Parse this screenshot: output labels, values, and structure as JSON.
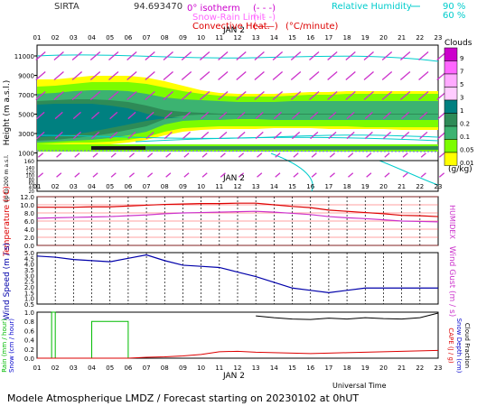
{
  "header": {
    "station": "SIRTA",
    "coords": "94.693470",
    "legend_isotherm": "0° isotherm",
    "legend_snowrain": "Snow-Rain Limit",
    "legend_conv": "Convective Heat.",
    "conv_unit": "(°C/minute)",
    "rh_label": "Relative Humidity",
    "rh_90": "90 %",
    "rh_60": "60 %"
  },
  "footer": {
    "universal_time": "Universal Time",
    "bottom_title": "Modele Atmospherique LMDZ / Forecast starting on 20230102 at 0hUT"
  },
  "chart_data": [
    {
      "type": "heatmap",
      "title": "Clouds",
      "unit": "(g/kg)",
      "hours": [
        "01",
        "02",
        "03",
        "04",
        "05",
        "06",
        "07",
        "08",
        "09",
        "10",
        "11",
        "12",
        "13",
        "14",
        "15",
        "16",
        "17",
        "18",
        "19",
        "20",
        "21",
        "22",
        "23"
      ],
      "day_label": "JAN 2",
      "ylabel": "Height (m a.s.l.)",
      "ylabel_low": "Up to 200 m a.s.l.",
      "yticks_upper": [
        11000,
        9000,
        7000,
        5000,
        3000,
        1000
      ],
      "yticks_lower": [
        140,
        120,
        100,
        80,
        60,
        40,
        20
      ],
      "yticks_lower_top": 160,
      "scale_labels": [
        "9",
        "7",
        "5",
        "3",
        "1",
        "0.2",
        "0.1",
        "0.05",
        "0.01"
      ],
      "scale_colors": [
        "#cc00cc",
        "#ff66ff",
        "#ffaaff",
        "#ffccff",
        "#008080",
        "#2e8b57",
        "#3cb371",
        "#7cfc00",
        "#ffff00"
      ]
    },
    {
      "type": "line",
      "x": [
        1,
        2,
        3,
        4,
        5,
        6,
        7,
        8,
        9,
        10,
        11,
        12,
        13,
        14,
        15,
        16,
        17,
        18,
        19,
        20,
        21,
        22,
        23
      ],
      "ylabel": "Temperature (°C)",
      "ylabel_right": "HUMIDEX",
      "yticks": [
        "12.0",
        "10.0",
        "8.0",
        "6.0",
        "4.0",
        "2.0",
        "0.0"
      ],
      "ylim": [
        0,
        12
      ],
      "series": [
        {
          "color": "#dd0000",
          "values": [
            9.4,
            9.4,
            9.4,
            9.5,
            9.5,
            9.7,
            9.9,
            10.1,
            10.2,
            10.3,
            10.3,
            10.4,
            10.4,
            10.0,
            9.6,
            9.3,
            8.7,
            8.4,
            8.1,
            7.8,
            7.4,
            7.3,
            7.1
          ]
        },
        {
          "color": "#cc33cc",
          "values": [
            6.7,
            6.8,
            6.9,
            7.0,
            7.1,
            7.3,
            7.5,
            7.8,
            8.0,
            8.1,
            8.2,
            8.3,
            8.4,
            8.2,
            7.9,
            7.6,
            7.1,
            6.8,
            6.6,
            6.3,
            6.0,
            5.9,
            5.8
          ]
        }
      ]
    },
    {
      "type": "line",
      "x": [
        1,
        2,
        3,
        4,
        5,
        6,
        7,
        8,
        9,
        10,
        11,
        12,
        13,
        14,
        15,
        16,
        17,
        18,
        19,
        20,
        21,
        22,
        23
      ],
      "ylabel": "Wind Speed (m / s)",
      "ylabel_right": "Wind Gust (m / s)",
      "yticks": [
        "5.0",
        "4.5",
        "4.0",
        "3.5",
        "3.0",
        "2.5",
        "2.0",
        "1.5",
        "1.0",
        "0.5"
      ],
      "ylim": [
        0.5,
        5.0
      ],
      "series": [
        {
          "color": "#0000aa",
          "values": [
            4.7,
            4.6,
            4.4,
            4.3,
            4.2,
            4.5,
            4.8,
            4.3,
            3.9,
            3.8,
            3.7,
            3.3,
            2.9,
            2.4,
            1.9,
            1.7,
            1.5,
            1.7,
            1.9,
            1.9,
            1.9,
            1.9,
            1.9
          ]
        }
      ]
    },
    {
      "type": "line",
      "x": [
        1,
        2,
        3,
        4,
        5,
        6,
        7,
        8,
        9,
        10,
        11,
        12,
        13,
        14,
        15,
        16,
        17,
        18,
        19,
        20,
        21,
        22,
        23
      ],
      "ylabel_left_green": "Rain (mm / hour)",
      "ylabel_left_blue": "Snow (cm / hour)",
      "ylabel_right_red": "CAPE (J / g)",
      "ylabel_right_blue": "Snow Depth (cm)",
      "ylabel_right_black": "Cloud Fraction",
      "yticks": [
        "1.0",
        "0.8",
        "0.6",
        "0.4",
        "0.2",
        "0.0"
      ],
      "ylim": [
        0,
        1
      ],
      "series": [
        {
          "color": "#00bb00",
          "values": [
            0,
            1.0,
            0,
            0,
            1.0,
            1.0,
            0,
            0,
            0,
            0,
            0,
            0,
            0,
            0,
            0,
            0,
            0,
            0,
            0,
            0,
            0,
            0,
            0
          ]
        },
        {
          "color": "#dd0000",
          "values": [
            0,
            0,
            0,
            0,
            0,
            0,
            0.02,
            0.03,
            0.05,
            0.08,
            0.14,
            0.15,
            0.13,
            0.12,
            0.11,
            0.1,
            0.11,
            0.12,
            0.13,
            0.14,
            0.15,
            0.16,
            0.17
          ]
        },
        {
          "color": "#000000",
          "values": [
            null,
            null,
            null,
            null,
            null,
            null,
            null,
            null,
            null,
            null,
            null,
            null,
            0.92,
            0.88,
            0.85,
            0.84,
            0.87,
            0.85,
            0.88,
            0.86,
            0.85,
            0.88,
            0.98
          ]
        }
      ]
    }
  ]
}
